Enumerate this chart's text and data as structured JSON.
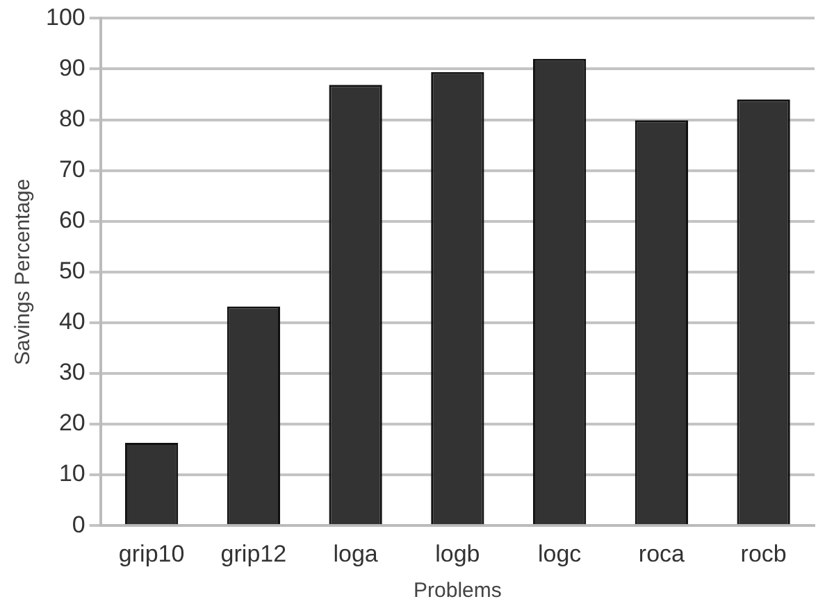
{
  "chart_data": {
    "type": "bar",
    "xlabel": "Problems",
    "ylabel": "Savings Percentage",
    "categories": [
      "grip10",
      "grip12",
      "loga",
      "logb",
      "logc",
      "roca",
      "rocb"
    ],
    "values": [
      16.3,
      43.2,
      86.9,
      89.4,
      92,
      79.9,
      84
    ],
    "color": "#333333",
    "ylim": [
      0,
      100
    ],
    "yticks": [
      0,
      10,
      20,
      30,
      40,
      50,
      60,
      70,
      80,
      90,
      100
    ],
    "grid": "y",
    "legend": false
  }
}
